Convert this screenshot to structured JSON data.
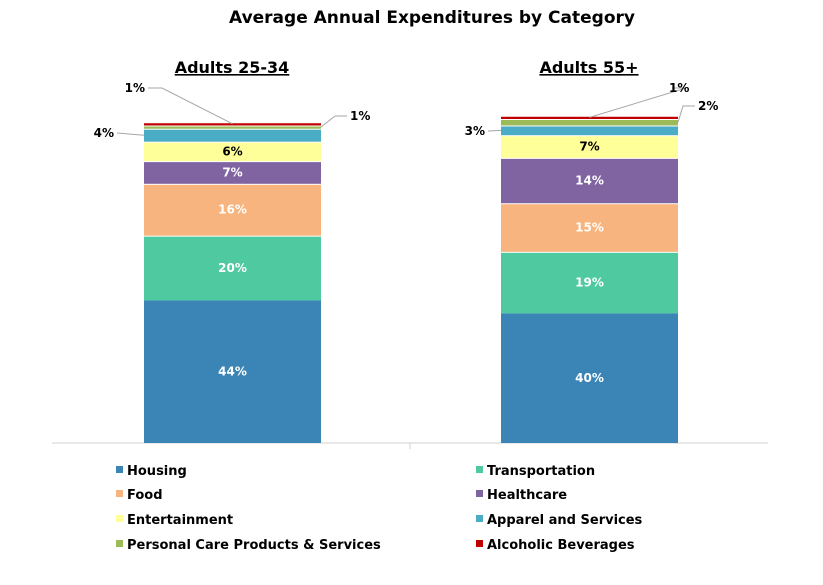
{
  "chart_data": {
    "type": "bar",
    "stacked": true,
    "title": "Average Annual Expenditures by Category",
    "categories": [
      "Adults 25-34",
      "Adults 55+"
    ],
    "series": [
      {
        "name": "Housing",
        "color": "#3A84B6",
        "values": [
          44,
          40
        ]
      },
      {
        "name": "Transportation",
        "color": "#4FC9A0",
        "values": [
          20,
          19
        ]
      },
      {
        "name": "Food",
        "color": "#F8B47E",
        "values": [
          16,
          15
        ]
      },
      {
        "name": "Healthcare",
        "color": "#8064A2",
        "values": [
          7,
          14
        ]
      },
      {
        "name": "Entertainment",
        "color": "#FFFF99",
        "values": [
          6,
          7
        ]
      },
      {
        "name": "Apparel and Services",
        "color": "#4BACC6",
        "values": [
          4,
          3
        ]
      },
      {
        "name": "Personal Care Products & Services",
        "color": "#9BBB59",
        "values": [
          1,
          2
        ]
      },
      {
        "name": "Alcoholic Beverages",
        "color": "#C00000",
        "values": [
          1,
          1
        ]
      }
    ],
    "value_format": "percent",
    "legend": "bottom",
    "grid": false
  }
}
